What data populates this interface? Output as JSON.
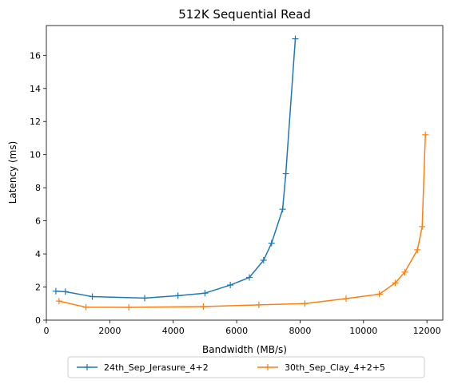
{
  "chart_data": {
    "type": "line",
    "title": "512K  Sequential Read",
    "xlabel": "Bandwidth (MB/s)",
    "ylabel": "Latency (ms)",
    "xlim": [
      0,
      12500
    ],
    "ylim": [
      0,
      17.8
    ],
    "xticks": [
      0,
      2000,
      4000,
      6000,
      8000,
      10000,
      12000
    ],
    "yticks": [
      0,
      2,
      4,
      6,
      8,
      10,
      12,
      14,
      16
    ],
    "grid": false,
    "legend_position": "bottom-center (below plot)",
    "marker": "+",
    "series": [
      {
        "name": "24th_Sep_Jerasure_4+2",
        "color": "#1f77b4",
        "x": [
          300,
          600,
          1450,
          3100,
          4150,
          5000,
          5800,
          6400,
          6850,
          7100,
          7450,
          7550,
          7850
        ],
        "y": [
          1.75,
          1.72,
          1.42,
          1.33,
          1.48,
          1.63,
          2.12,
          2.58,
          3.62,
          4.65,
          6.7,
          8.85,
          17.0
        ]
      },
      {
        "name": "30th_Sep_Clay_4+2+5",
        "color": "#ff7f0e",
        "x": [
          400,
          1250,
          2600,
          4950,
          6700,
          8150,
          9450,
          10500,
          11000,
          11300,
          11700,
          11850,
          11950
        ],
        "y": [
          1.15,
          0.78,
          0.77,
          0.82,
          0.92,
          1.0,
          1.3,
          1.57,
          2.25,
          2.9,
          4.25,
          5.65,
          11.2
        ]
      }
    ]
  }
}
